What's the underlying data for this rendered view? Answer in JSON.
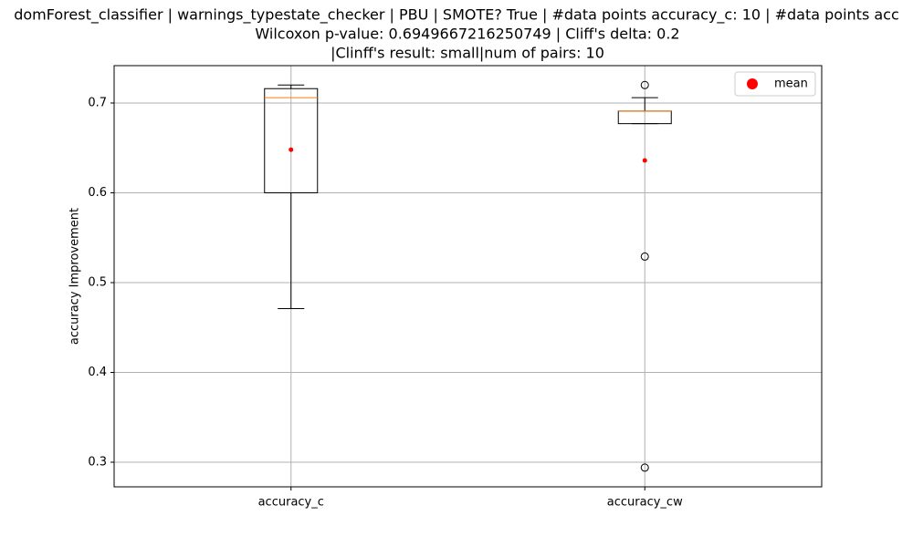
{
  "chart_data": {
    "type": "box",
    "title": [
      "domForest_classifier | warnings_typestate_checker | PBU | SMOTE? True | #data points accuracy_c: 10 | #data points acc",
      "Wilcoxon p-value: 0.6949667216250749 | Cliff's delta: 0.2",
      "|Clinff's result: small|num of pairs: 10"
    ],
    "y_label": "accuracy Improvement",
    "categories": [
      "accuracy_c",
      "accuracy_cw"
    ],
    "whisker_low": [
      0.471,
      0.677
    ],
    "q1": [
      0.6,
      0.677
    ],
    "median": [
      0.706,
      0.691
    ],
    "q3": [
      0.716,
      0.691
    ],
    "whisker_high": [
      0.72,
      0.706
    ],
    "means": [
      0.648,
      0.636
    ],
    "outliers": [
      [],
      [
        0.72,
        0.529,
        0.294
      ]
    ],
    "legend_label": "mean",
    "legend_position": "upper right",
    "box_color": "#000000",
    "median_color": "#ff7f0e",
    "mean_color": "#ff0000",
    "grid": true,
    "ylim": [
      0.2726,
      0.7416
    ],
    "yticks": [
      0.3,
      0.4,
      0.5,
      0.6,
      0.7
    ]
  }
}
